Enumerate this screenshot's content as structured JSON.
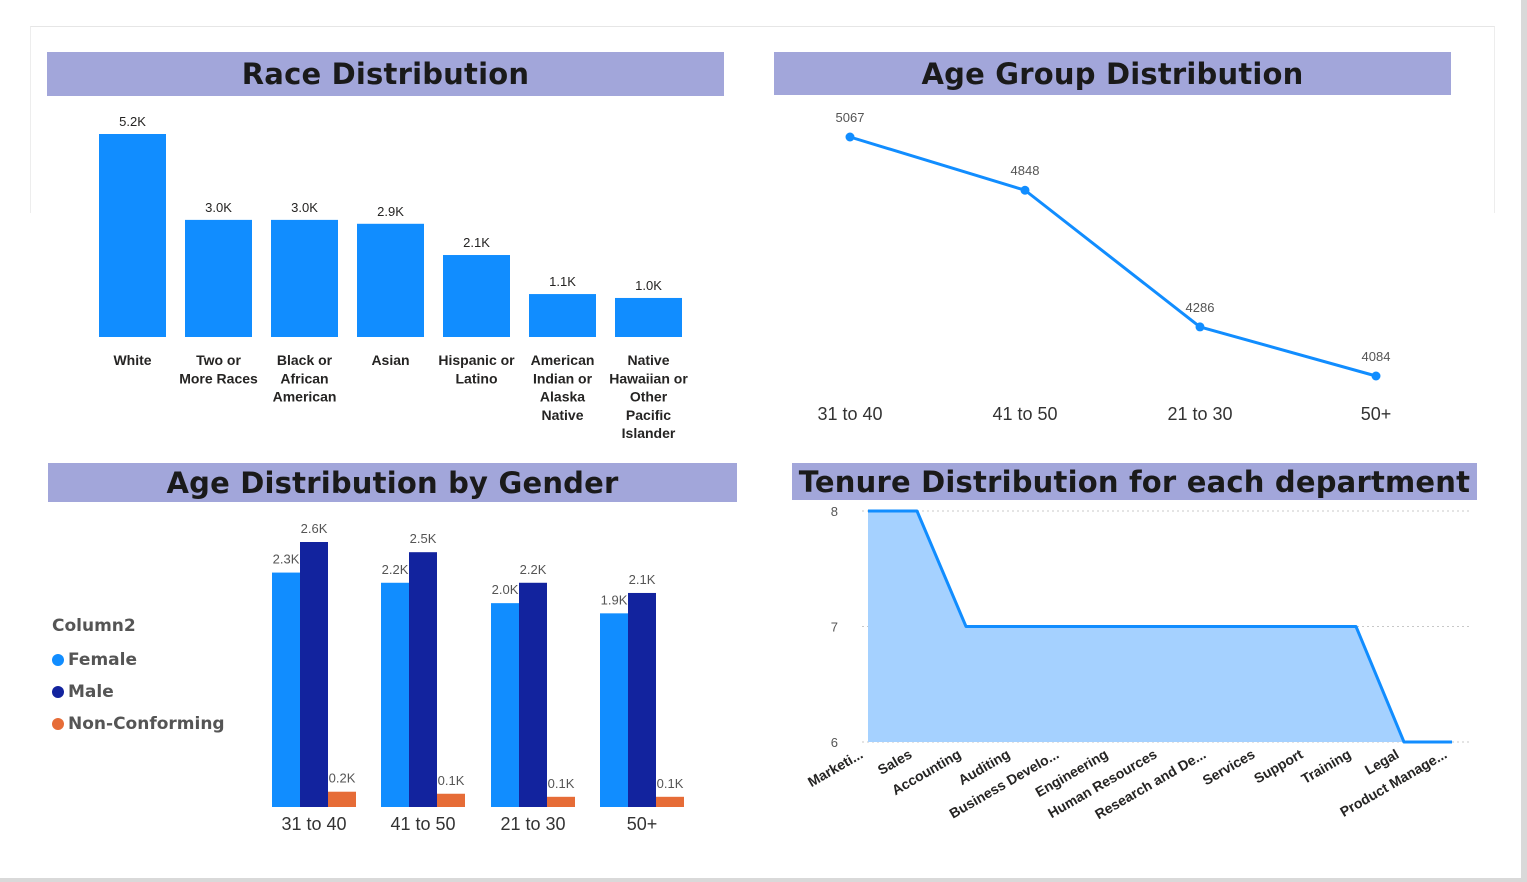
{
  "chart_data": [
    {
      "id": "race",
      "type": "bar",
      "title": "Race Distribution",
      "categories": [
        "White",
        "Two or More Races",
        "Black or African American",
        "Asian",
        "Hispanic or Latino",
        "American Indian or Alaska Native",
        "Native Hawaiian or Other Pacific Islander"
      ],
      "category_lines": [
        [
          "White"
        ],
        [
          "Two or",
          "More Races"
        ],
        [
          "Black or",
          "African",
          "American"
        ],
        [
          "Asian"
        ],
        [
          "Hispanic or",
          "Latino"
        ],
        [
          "American",
          "Indian or",
          "Alaska",
          "Native"
        ],
        [
          "Native",
          "Hawaiian or",
          "Other",
          "Pacific",
          "Islander"
        ]
      ],
      "values": [
        5200,
        3000,
        3000,
        2900,
        2100,
        1100,
        1000
      ],
      "data_labels": [
        "5.2K",
        "3.0K",
        "3.0K",
        "2.9K",
        "2.1K",
        "1.1K",
        "1.0K"
      ],
      "color": "#118dff",
      "ylim": [
        0,
        5200
      ]
    },
    {
      "id": "age_group",
      "type": "line",
      "title": "Age Group Distribution",
      "categories": [
        "31 to 40",
        "41 to 50",
        "21 to 30",
        "50+"
      ],
      "values": [
        5067,
        4848,
        4286,
        4084
      ],
      "data_labels": [
        "5067",
        "4848",
        "4286",
        "4084"
      ],
      "color": "#118dff",
      "ylim": [
        4084,
        5067
      ]
    },
    {
      "id": "age_gender",
      "type": "bar",
      "title": "Age Distribution by Gender",
      "categories": [
        "31 to 40",
        "41 to 50",
        "21 to 30",
        "50+"
      ],
      "legend_title": "Column2",
      "legend_position": "left",
      "series": [
        {
          "name": "Female",
          "color": "#118dff",
          "values": [
            2300,
            2200,
            2000,
            1900
          ],
          "data_labels": [
            "2.3K",
            "2.2K",
            "2.0K",
            "1.9K"
          ]
        },
        {
          "name": "Male",
          "color": "#12239e",
          "values": [
            2600,
            2500,
            2200,
            2100
          ],
          "data_labels": [
            "2.6K",
            "2.5K",
            "2.2K",
            "2.1K"
          ]
        },
        {
          "name": "Non-Conforming",
          "color": "#e66c37",
          "values": [
            150,
            130,
            100,
            100
          ],
          "data_labels": [
            "0.2K",
            "0.1K",
            "0.1K",
            "0.1K"
          ]
        }
      ],
      "ylim": [
        0,
        2600
      ]
    },
    {
      "id": "tenure",
      "type": "area",
      "title": "Tenure Distribution for each department",
      "categories": [
        "Marketi...",
        "Sales",
        "Accounting",
        "Auditing",
        "Business Develo...",
        "Engineering",
        "Human Resources",
        "Research and De...",
        "Services",
        "Support",
        "Training",
        "Legal",
        "Product Manage..."
      ],
      "values": [
        8,
        8,
        7,
        7,
        7,
        7,
        7,
        7,
        7,
        7,
        7,
        6,
        6
      ],
      "y_ticks": [
        6,
        7,
        8
      ],
      "ylim": [
        6,
        8
      ],
      "grid": true,
      "line_color": "#118dff",
      "fill_color": "#a5d1ff"
    }
  ]
}
